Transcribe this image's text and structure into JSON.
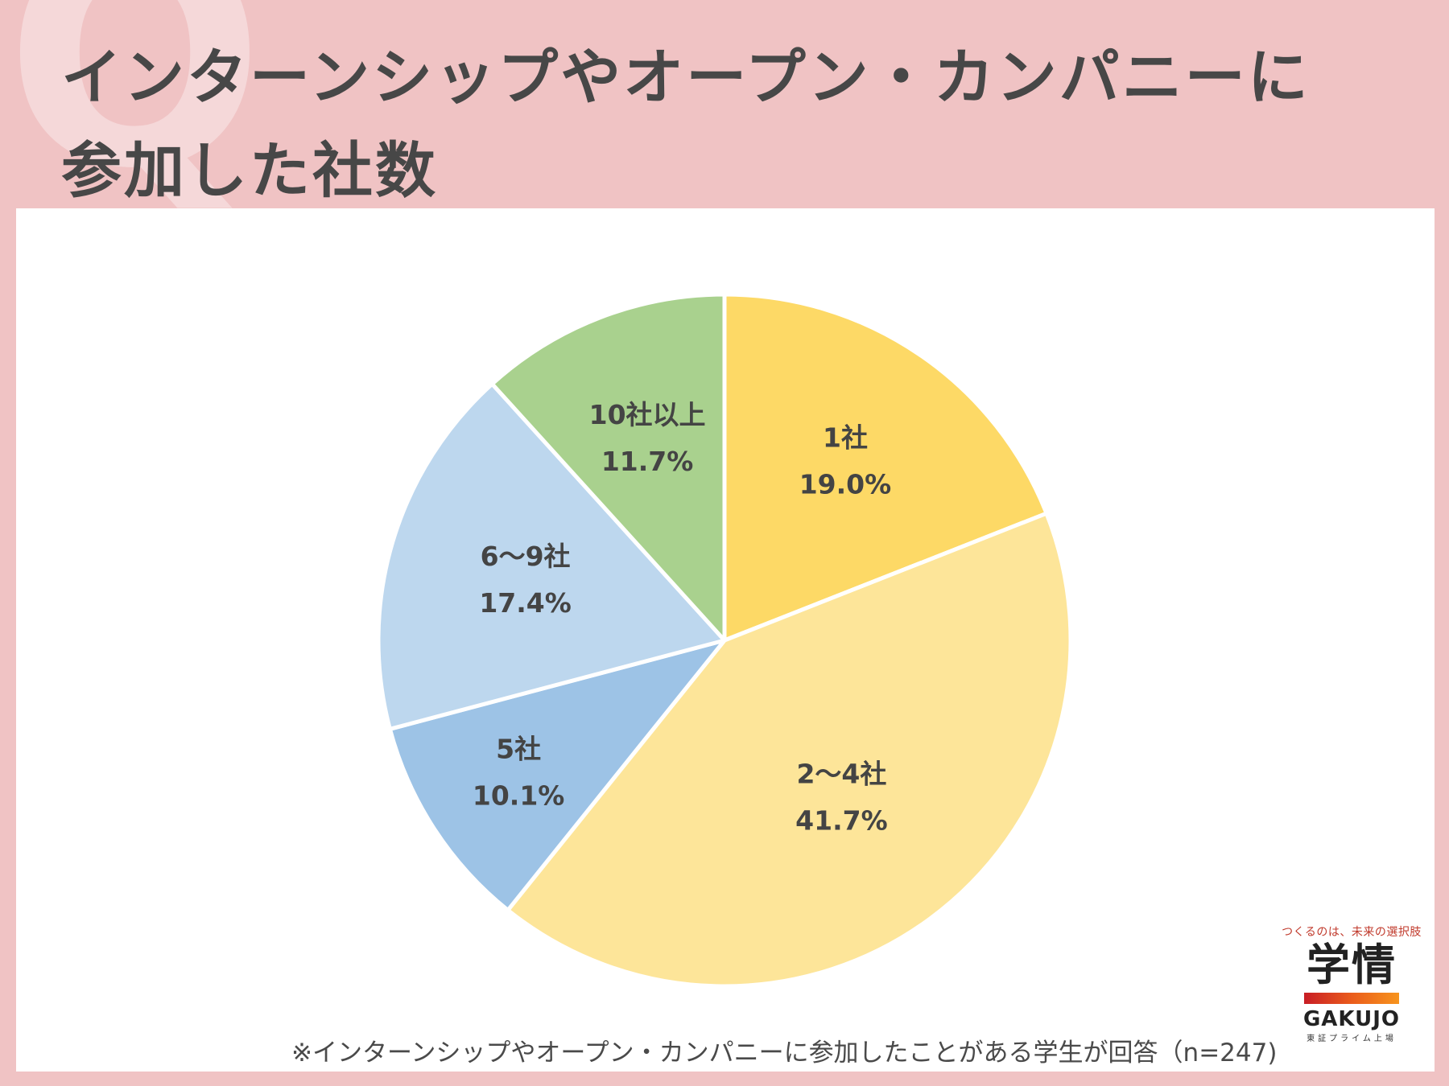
{
  "header": {
    "q_mark": "Q",
    "title_line1": "インターンシップやオープン・カンパニーに",
    "title_line2": "参加した社数"
  },
  "chart_data": {
    "type": "pie",
    "title": "インターンシップやオープン・カンパニーに参加した社数",
    "start_angle_deg": 0,
    "direction": "clockwise",
    "slices": [
      {
        "label": "1社",
        "value": 19.0,
        "value_label": "19.0%",
        "color": "#fdd966"
      },
      {
        "label": "2～4社",
        "value": 41.7,
        "value_label": "41.7%",
        "color": "#fde599"
      },
      {
        "label": "5社",
        "value": 10.1,
        "value_label": "10.1%",
        "color": "#9dc3e6"
      },
      {
        "label": "6～9社",
        "value": 17.4,
        "value_label": "17.4%",
        "color": "#bdd7ee"
      },
      {
        "label": "10社以上",
        "value": 11.7,
        "value_label": "11.7%",
        "color": "#a9d18e"
      }
    ]
  },
  "footnote": "※インターンシップやオープン・カンパニーに参加したことがある学生が回答（n=247)",
  "logo": {
    "tagline": "つくるのは、未来の選択肢",
    "kanji": "学情",
    "english": "GAKUJO",
    "sub": "東証プライム上場"
  }
}
